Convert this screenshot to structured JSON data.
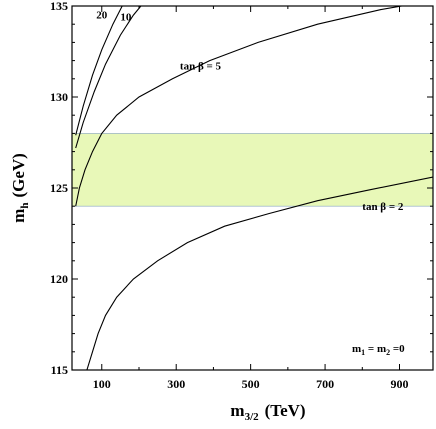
{
  "chart_data": {
    "type": "line",
    "xlabel_main": "m",
    "xlabel_sub": "3/2",
    "xlabel_unit": "(TeV)",
    "ylabel_main": "m",
    "ylabel_sub": "h",
    "ylabel_unit": "(GeV)",
    "xlim": [
      20,
      990
    ],
    "ylim": [
      115,
      135
    ],
    "x_ticks": [
      100,
      300,
      500,
      700,
      900
    ],
    "y_ticks": [
      115,
      120,
      125,
      130,
      135
    ],
    "band": {
      "y_min": 124,
      "y_max": 128,
      "color": "#e8f8b8",
      "edge_color": "#9fb8c8"
    },
    "series": [
      {
        "name": "tan β = 2",
        "points": [
          [
            60,
            115
          ],
          [
            75,
            116
          ],
          [
            90,
            117
          ],
          [
            110,
            118
          ],
          [
            140,
            119
          ],
          [
            185,
            120
          ],
          [
            250,
            121
          ],
          [
            330,
            122
          ],
          [
            430,
            122.9
          ],
          [
            550,
            123.6
          ],
          [
            680,
            124.3
          ],
          [
            820,
            124.9
          ],
          [
            990,
            125.6
          ]
        ]
      },
      {
        "name": "tan β = 5",
        "points": [
          [
            30,
            124
          ],
          [
            40,
            125
          ],
          [
            55,
            126
          ],
          [
            75,
            127
          ],
          [
            100,
            128
          ],
          [
            140,
            129
          ],
          [
            200,
            130
          ],
          [
            290,
            131
          ],
          [
            390,
            132
          ],
          [
            520,
            133
          ],
          [
            680,
            134
          ],
          [
            850,
            134.8
          ],
          [
            990,
            135.3
          ]
        ]
      },
      {
        "name": "10",
        "points": [
          [
            30,
            127.2
          ],
          [
            50,
            128.6
          ],
          [
            80,
            130.3
          ],
          [
            110,
            131.8
          ],
          [
            150,
            133.4
          ],
          [
            185,
            134.5
          ],
          [
            205,
            135
          ]
        ]
      },
      {
        "name": "20",
        "points": [
          [
            30,
            127.9
          ],
          [
            50,
            129.5
          ],
          [
            75,
            131.2
          ],
          [
            100,
            132.6
          ],
          [
            130,
            134
          ],
          [
            155,
            135
          ]
        ]
      }
    ],
    "annotations": {
      "tan2": {
        "text": "tan β = 2",
        "x": 800,
        "y": 123.8
      },
      "tan5": {
        "text": "tan β = 5",
        "x": 310,
        "y": 131.5
      },
      "tan10": {
        "text": "10",
        "x": 150,
        "y": 134.2
      },
      "tan20": {
        "text": "20",
        "x": 85,
        "y": 134.3
      }
    },
    "legend_text": {
      "m1": "m",
      "s1": "1",
      "eq1": " = m",
      "s2": "2",
      "eq2": " =0"
    }
  }
}
